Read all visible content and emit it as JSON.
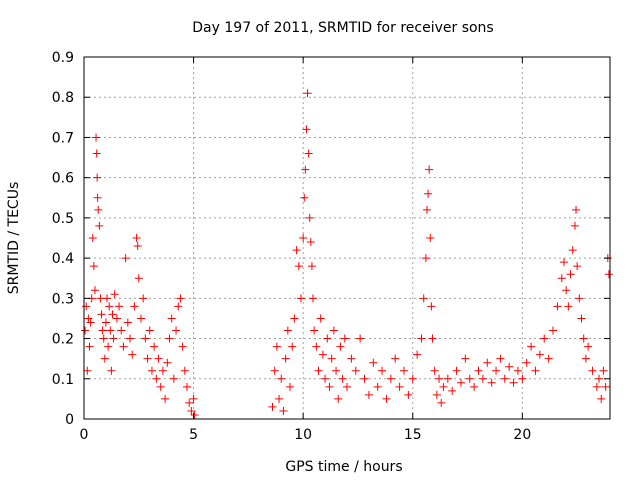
{
  "chart_data": {
    "type": "scatter",
    "title": "Day 197 of 2011, SRMTID for receiver sons",
    "xlabel": "GPS time / hours",
    "ylabel": "SRMTID / TECUs",
    "xlim": [
      0,
      24
    ],
    "ylim": [
      0,
      0.9
    ],
    "xticks": [
      0,
      5,
      10,
      15,
      20
    ],
    "xtick_labels": [
      "0",
      "5",
      "10",
      "15",
      "20"
    ],
    "yticks": [
      0,
      0.1,
      0.2,
      0.3,
      0.4,
      0.5,
      0.6,
      0.7,
      0.8,
      0.9
    ],
    "ytick_labels": [
      "0",
      "0.1",
      "0.2",
      "0.3",
      "0.4",
      "0.5",
      "0.6",
      "0.7",
      "0.8",
      "0.9"
    ],
    "grid": true,
    "marker": "+",
    "series": [
      {
        "name": "SRMTID",
        "color": "#ff0000",
        "points": [
          [
            0.05,
            0.22
          ],
          [
            0.1,
            0.28
          ],
          [
            0.15,
            0.12
          ],
          [
            0.2,
            0.25
          ],
          [
            0.25,
            0.18
          ],
          [
            0.3,
            0.24
          ],
          [
            0.35,
            0.3
          ],
          [
            0.4,
            0.45
          ],
          [
            0.45,
            0.38
          ],
          [
            0.5,
            0.32
          ],
          [
            0.55,
            0.7
          ],
          [
            0.58,
            0.66
          ],
          [
            0.6,
            0.6
          ],
          [
            0.62,
            0.55
          ],
          [
            0.65,
            0.52
          ],
          [
            0.7,
            0.48
          ],
          [
            0.75,
            0.3
          ],
          [
            0.8,
            0.26
          ],
          [
            0.85,
            0.22
          ],
          [
            0.9,
            0.2
          ],
          [
            0.95,
            0.15
          ],
          [
            1.0,
            0.24
          ],
          [
            1.05,
            0.3
          ],
          [
            1.1,
            0.18
          ],
          [
            1.15,
            0.28
          ],
          [
            1.2,
            0.22
          ],
          [
            1.25,
            0.12
          ],
          [
            1.3,
            0.26
          ],
          [
            1.35,
            0.2
          ],
          [
            1.4,
            0.31
          ],
          [
            1.5,
            0.25
          ],
          [
            1.6,
            0.28
          ],
          [
            1.7,
            0.22
          ],
          [
            1.8,
            0.18
          ],
          [
            1.9,
            0.4
          ],
          [
            2.0,
            0.24
          ],
          [
            2.1,
            0.2
          ],
          [
            2.2,
            0.16
          ],
          [
            2.3,
            0.28
          ],
          [
            2.4,
            0.45
          ],
          [
            2.45,
            0.43
          ],
          [
            2.5,
            0.35
          ],
          [
            2.6,
            0.25
          ],
          [
            2.7,
            0.3
          ],
          [
            2.8,
            0.2
          ],
          [
            2.9,
            0.15
          ],
          [
            3.0,
            0.22
          ],
          [
            3.1,
            0.12
          ],
          [
            3.2,
            0.18
          ],
          [
            3.3,
            0.1
          ],
          [
            3.4,
            0.15
          ],
          [
            3.5,
            0.08
          ],
          [
            3.6,
            0.12
          ],
          [
            3.7,
            0.05
          ],
          [
            3.8,
            0.14
          ],
          [
            3.9,
            0.2
          ],
          [
            4.0,
            0.25
          ],
          [
            4.1,
            0.1
          ],
          [
            4.2,
            0.22
          ],
          [
            4.3,
            0.28
          ],
          [
            4.4,
            0.3
          ],
          [
            4.5,
            0.18
          ],
          [
            4.6,
            0.12
          ],
          [
            4.7,
            0.08
          ],
          [
            4.8,
            0.04
          ],
          [
            4.9,
            0.02
          ],
          [
            5.0,
            0.05
          ],
          [
            5.05,
            0.01
          ],
          [
            8.6,
            0.03
          ],
          [
            8.7,
            0.12
          ],
          [
            8.8,
            0.18
          ],
          [
            8.9,
            0.05
          ],
          [
            9.0,
            0.1
          ],
          [
            9.1,
            0.02
          ],
          [
            9.2,
            0.15
          ],
          [
            9.3,
            0.22
          ],
          [
            9.4,
            0.08
          ],
          [
            9.5,
            0.18
          ],
          [
            9.6,
            0.25
          ],
          [
            9.7,
            0.42
          ],
          [
            9.8,
            0.38
          ],
          [
            9.9,
            0.3
          ],
          [
            10.0,
            0.45
          ],
          [
            10.05,
            0.55
          ],
          [
            10.1,
            0.62
          ],
          [
            10.15,
            0.72
          ],
          [
            10.2,
            0.81
          ],
          [
            10.25,
            0.66
          ],
          [
            10.3,
            0.5
          ],
          [
            10.35,
            0.44
          ],
          [
            10.4,
            0.38
          ],
          [
            10.45,
            0.3
          ],
          [
            10.5,
            0.22
          ],
          [
            10.6,
            0.18
          ],
          [
            10.7,
            0.12
          ],
          [
            10.8,
            0.25
          ],
          [
            10.9,
            0.16
          ],
          [
            11.0,
            0.1
          ],
          [
            11.1,
            0.2
          ],
          [
            11.2,
            0.08
          ],
          [
            11.3,
            0.15
          ],
          [
            11.4,
            0.22
          ],
          [
            11.5,
            0.12
          ],
          [
            11.6,
            0.05
          ],
          [
            11.7,
            0.18
          ],
          [
            11.8,
            0.1
          ],
          [
            11.9,
            0.2
          ],
          [
            12.0,
            0.08
          ],
          [
            12.2,
            0.15
          ],
          [
            12.4,
            0.12
          ],
          [
            12.6,
            0.2
          ],
          [
            12.8,
            0.1
          ],
          [
            13.0,
            0.06
          ],
          [
            13.2,
            0.14
          ],
          [
            13.4,
            0.08
          ],
          [
            13.6,
            0.12
          ],
          [
            13.8,
            0.05
          ],
          [
            14.0,
            0.1
          ],
          [
            14.2,
            0.15
          ],
          [
            14.4,
            0.08
          ],
          [
            14.6,
            0.12
          ],
          [
            14.8,
            0.06
          ],
          [
            15.0,
            0.1
          ],
          [
            15.2,
            0.16
          ],
          [
            15.4,
            0.2
          ],
          [
            15.5,
            0.3
          ],
          [
            15.6,
            0.4
          ],
          [
            15.65,
            0.52
          ],
          [
            15.7,
            0.56
          ],
          [
            15.75,
            0.62
          ],
          [
            15.8,
            0.45
          ],
          [
            15.85,
            0.28
          ],
          [
            15.9,
            0.2
          ],
          [
            16.0,
            0.12
          ],
          [
            16.1,
            0.06
          ],
          [
            16.2,
            0.1
          ],
          [
            16.3,
            0.04
          ],
          [
            16.4,
            0.08
          ],
          [
            16.6,
            0.1
          ],
          [
            16.8,
            0.07
          ],
          [
            17.0,
            0.12
          ],
          [
            17.2,
            0.09
          ],
          [
            17.4,
            0.15
          ],
          [
            17.6,
            0.1
          ],
          [
            17.8,
            0.08
          ],
          [
            18.0,
            0.12
          ],
          [
            18.2,
            0.1
          ],
          [
            18.4,
            0.14
          ],
          [
            18.6,
            0.09
          ],
          [
            18.8,
            0.12
          ],
          [
            19.0,
            0.15
          ],
          [
            19.2,
            0.1
          ],
          [
            19.4,
            0.13
          ],
          [
            19.6,
            0.09
          ],
          [
            19.8,
            0.12
          ],
          [
            20.0,
            0.1
          ],
          [
            20.2,
            0.14
          ],
          [
            20.4,
            0.18
          ],
          [
            20.6,
            0.12
          ],
          [
            20.8,
            0.16
          ],
          [
            21.0,
            0.2
          ],
          [
            21.2,
            0.15
          ],
          [
            21.4,
            0.22
          ],
          [
            21.6,
            0.28
          ],
          [
            21.8,
            0.35
          ],
          [
            21.9,
            0.39
          ],
          [
            22.0,
            0.32
          ],
          [
            22.1,
            0.28
          ],
          [
            22.2,
            0.36
          ],
          [
            22.3,
            0.42
          ],
          [
            22.4,
            0.48
          ],
          [
            22.45,
            0.52
          ],
          [
            22.5,
            0.38
          ],
          [
            22.6,
            0.3
          ],
          [
            22.7,
            0.25
          ],
          [
            22.8,
            0.2
          ],
          [
            22.9,
            0.15
          ],
          [
            23.0,
            0.18
          ],
          [
            23.2,
            0.12
          ],
          [
            23.4,
            0.08
          ],
          [
            23.5,
            0.1
          ],
          [
            23.6,
            0.05
          ],
          [
            23.7,
            0.12
          ],
          [
            23.8,
            0.08
          ],
          [
            23.9,
            0.4
          ],
          [
            23.95,
            0.36
          ]
        ]
      }
    ]
  }
}
